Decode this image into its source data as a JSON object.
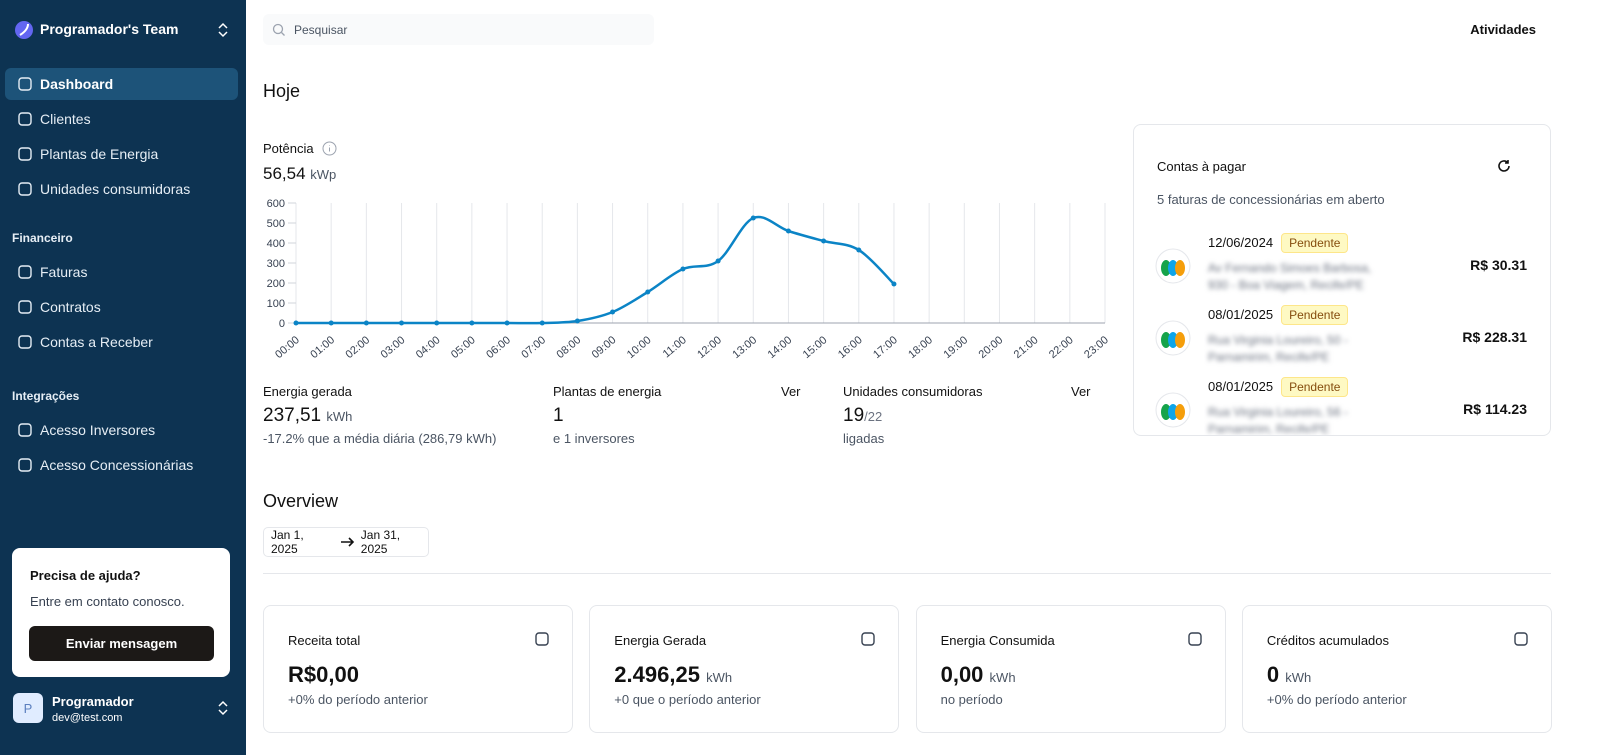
{
  "sidebar": {
    "team": "Programador's Team",
    "nav": [
      "Dashboard",
      "Clientes",
      "Plantas de Energia",
      "Unidades consumidoras"
    ],
    "sections": [
      {
        "title": "Financeiro",
        "items": [
          "Faturas",
          "Contratos",
          "Contas a Receber"
        ]
      },
      {
        "title": "Integrações",
        "items": [
          "Acesso Inversores",
          "Acesso Concessionárias"
        ]
      }
    ],
    "help": {
      "title": "Precisa de ajuda?",
      "text": "Entre em contato conosco.",
      "button": "Enviar mensagem"
    },
    "user": {
      "initial": "P",
      "name": "Programador",
      "email": "dev@test.com"
    }
  },
  "header": {
    "search": "Pesquisar",
    "activities": "Atividades"
  },
  "today": {
    "title": "Hoje",
    "power_label": "Potência",
    "power_value": "56,54",
    "power_unit": "kWp"
  },
  "power_chart": {
    "type": "line",
    "categories": [
      "00:00",
      "01:00",
      "02:00",
      "03:00",
      "04:00",
      "05:00",
      "06:00",
      "07:00",
      "08:00",
      "09:00",
      "10:00",
      "11:00",
      "12:00",
      "13:00",
      "14:00",
      "15:00",
      "16:00",
      "17:00",
      "18:00",
      "19:00",
      "20:00",
      "21:00",
      "22:00",
      "23:00"
    ],
    "values": [
      0,
      0,
      0,
      0,
      0,
      0,
      0,
      0,
      10,
      55,
      155,
      270,
      310,
      525,
      460,
      410,
      365,
      195,
      null,
      null,
      null,
      null,
      null,
      null
    ],
    "color": "#0b84c6",
    "ylim": [
      0,
      600
    ],
    "yticks": [
      0,
      100,
      200,
      300,
      400,
      500,
      600
    ],
    "grid": true
  },
  "stats": [
    {
      "label": "Energia gerada",
      "value": "237,51",
      "unit": "kWh",
      "note": "-17.2% que a média diária (286,79 kWh)"
    },
    {
      "label": "Plantas de energia",
      "link": "Ver",
      "value": "1",
      "note": "e 1 inversores"
    },
    {
      "label": "Unidades consumidoras",
      "link": "Ver",
      "value": "19",
      "total": "/22",
      "note": "ligadas"
    }
  ],
  "bills": {
    "title": "Contas à pagar",
    "subtitle": "5 faturas de concessionárias em aberto",
    "items": [
      {
        "date": "12/06/2024",
        "status": "Pendente",
        "address": "Av Fernando Simoes Barbosa, 930 - Boa Viagem, Recife/PE",
        "amount": "R$ 30.31"
      },
      {
        "date": "08/01/2025",
        "status": "Pendente",
        "address": "Rua Virginia Loureiro, 50 - Parnamirim, Recife/PE",
        "amount": "R$ 228.31"
      },
      {
        "date": "08/01/2025",
        "status": "Pendente",
        "address": "Rua Virginia Loureiro, 56 - Parnamirim, Recife/PE",
        "amount": "R$ 114.23"
      }
    ]
  },
  "overview": {
    "title": "Overview",
    "date_from": "Jan 1, 2025",
    "date_to": "Jan 31, 2025",
    "cards": [
      {
        "label": "Receita total",
        "value": "R$0,00",
        "note": "+0% do período anterior"
      },
      {
        "label": "Energia Gerada",
        "value": "2.496,25",
        "unit": "kWh",
        "note": "+0 que o período anterior"
      },
      {
        "label": "Energia Consumida",
        "value": "0,00",
        "unit": "kWh",
        "note": "no período"
      },
      {
        "label": "Créditos acumulados",
        "value": "0",
        "unit": "kWh",
        "note": "+0% do período anterior"
      }
    ]
  }
}
